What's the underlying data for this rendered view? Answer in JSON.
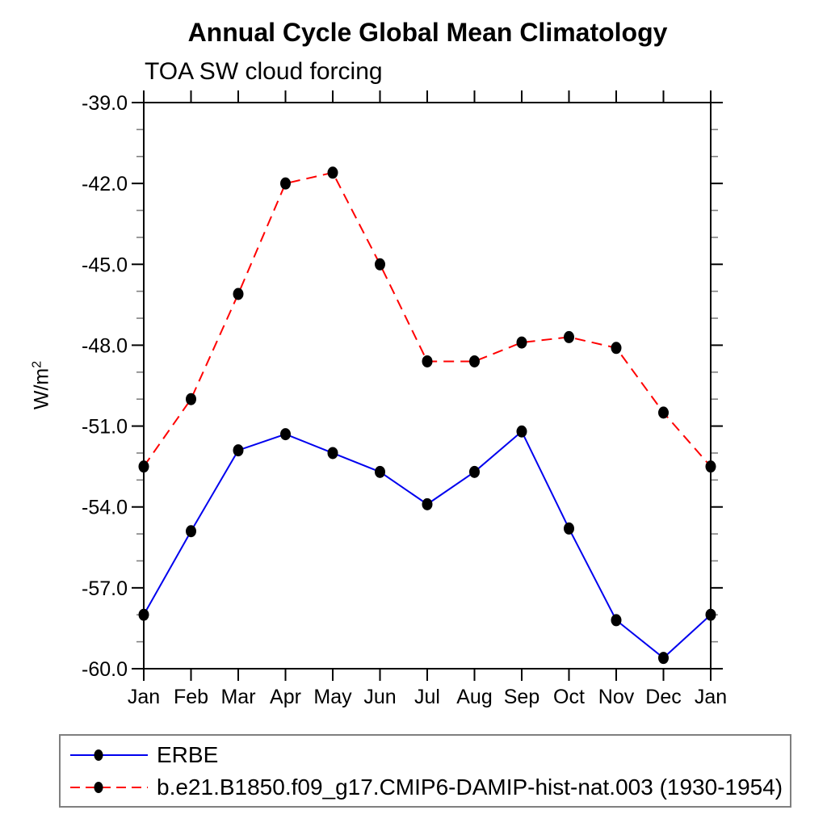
{
  "header": {
    "title": "Annual Cycle Global Mean Climatology",
    "subtitle": "TOA SW cloud forcing"
  },
  "y_axis": {
    "label": "W/m",
    "label_sup": "2"
  },
  "chart_data": {
    "type": "line",
    "categories": [
      "Jan",
      "Feb",
      "Mar",
      "Apr",
      "May",
      "Jun",
      "Jul",
      "Aug",
      "Sep",
      "Oct",
      "Nov",
      "Dec",
      "Jan"
    ],
    "series": [
      {
        "name": "ERBE",
        "color": "#0000ee",
        "style": "solid",
        "marker": "filled-circle",
        "marker_color": "#000000",
        "values": [
          -58.0,
          -54.9,
          -51.9,
          -51.3,
          -52.0,
          -52.7,
          -53.9,
          -52.7,
          -51.2,
          -54.8,
          -58.2,
          -59.6,
          -58.0
        ]
      },
      {
        "name": "b.e21.B1850.f09_g17.CMIP6-DAMIP-hist-nat.003 (1930-1954)",
        "color": "#ff0000",
        "style": "dashed",
        "marker": "filled-circle",
        "marker_color": "#000000",
        "values": [
          -52.5,
          -50.0,
          -46.1,
          -42.0,
          -41.6,
          -45.0,
          -48.6,
          -48.6,
          -47.9,
          -47.7,
          -48.1,
          -50.5,
          -52.5
        ]
      }
    ],
    "ylabel": "W/m2",
    "ylim": [
      -60.0,
      -39.0
    ],
    "ytick_major": [
      -39,
      -42,
      -45,
      -48,
      -51,
      -54,
      -57,
      -60
    ],
    "ytick_labels": [
      "-39.0",
      "-42.0",
      "-45.0",
      "-48.0",
      "-51.0",
      "-54.0",
      "-57.0",
      "-60.0"
    ],
    "ytick_minor_step": 1,
    "grid": false,
    "legend_position": "bottom",
    "axis_color": "#000000",
    "minor_tick_color": "#808080"
  }
}
